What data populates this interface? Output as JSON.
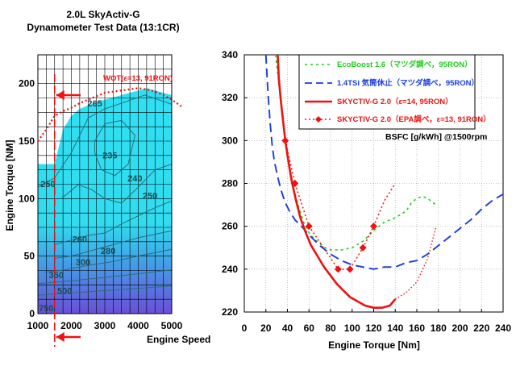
{
  "chart_data": [
    {
      "type": "heatmap",
      "title": "2.0L SkyActiv-G",
      "subtitle": "Dynamometer Test Data (13:1CR)",
      "xlabel": "Engine Speed",
      "ylabel": "Engine Torque [NM]",
      "xlim": [
        1000,
        5000
      ],
      "ylim": [
        0,
        225
      ],
      "xticks": [
        "1000",
        "2000",
        "3000",
        "4000",
        "5000"
      ],
      "yticks": [
        "0",
        "50",
        "100",
        "150",
        "200"
      ],
      "grid": true,
      "wot_label": "WOT(ε=13, 91RON)",
      "wot_curve": {
        "x": [
          1000,
          1250,
          1500,
          1750,
          2000,
          2250,
          2500,
          2750,
          3000,
          3250,
          3500,
          3750,
          4000,
          4250,
          4500,
          4750,
          5000,
          5300
        ],
        "y": [
          150,
          160,
          172,
          176,
          179,
          183,
          186,
          189,
          192,
          193,
          194,
          195,
          196,
          195,
          193,
          190,
          186,
          180
        ]
      },
      "fill_top": {
        "x": [
          1000,
          1500,
          1750,
          2000,
          2250,
          2500,
          2750,
          3000,
          3250,
          3500,
          3750,
          4000,
          4250,
          4500,
          4750,
          5000
        ],
        "y": [
          130,
          130,
          160,
          172,
          178,
          181,
          184,
          186,
          188,
          190,
          192,
          194,
          196,
          194,
          192,
          190
        ]
      },
      "contour_labels": [
        {
          "text": "250",
          "x": 1300,
          "y": 110
        },
        {
          "text": "265",
          "x": 2700,
          "y": 180
        },
        {
          "text": "235",
          "x": 3150,
          "y": 135
        },
        {
          "text": "240",
          "x": 3900,
          "y": 115
        },
        {
          "text": "250",
          "x": 4350,
          "y": 100
        },
        {
          "text": "260",
          "x": 2250,
          "y": 62
        },
        {
          "text": "280",
          "x": 3100,
          "y": 52
        },
        {
          "text": "300",
          "x": 2350,
          "y": 42
        },
        {
          "text": "350",
          "x": 1550,
          "y": 31
        },
        {
          "text": "500",
          "x": 1800,
          "y": 17
        },
        {
          "text": "750",
          "x": 1250,
          "y": 2
        }
      ],
      "test_speed": 1500
    },
    {
      "type": "line",
      "xlabel": "Engine Torque [Nm]",
      "annotation": "BSFC [g/kWh] @1500rpm",
      "xlim": [
        0,
        240
      ],
      "ylim": [
        220,
        340
      ],
      "xticks": [
        "0",
        "20",
        "40",
        "60",
        "80",
        "100",
        "120",
        "140",
        "160",
        "180",
        "200",
        "220",
        "240"
      ],
      "yticks": [
        "220",
        "240",
        "260",
        "280",
        "300",
        "320",
        "340"
      ],
      "grid": true,
      "legend_position": "top-right",
      "series": [
        {
          "name": "EcoBoost 1.6（マツダ調べ，95RON）",
          "color": "#22cc22",
          "dash": "3,4",
          "x": [
            29,
            32,
            35,
            38,
            42,
            46,
            50,
            55,
            60,
            65,
            70,
            75,
            80,
            90,
            100,
            110,
            120,
            130,
            140,
            150,
            155,
            160,
            165,
            170,
            175,
            178
          ],
          "y": [
            340,
            327,
            315,
            300,
            288,
            277,
            270,
            262,
            257,
            254,
            252,
            250,
            249,
            249,
            250,
            253,
            258,
            262,
            264,
            267,
            271,
            273,
            274,
            273,
            271,
            270
          ]
        },
        {
          "name": "1.4TSi 気筒休止（マツダ調べ，95RON）",
          "color": "#1a3cdd",
          "dash": "11,6",
          "x": [
            20,
            22,
            24,
            26,
            28,
            31,
            34,
            38,
            42,
            47,
            53,
            60,
            70,
            80,
            90,
            100,
            110,
            120,
            130,
            140,
            150,
            160,
            170,
            180,
            190,
            200,
            210,
            220,
            230,
            240
          ],
          "y": [
            340,
            322,
            308,
            297,
            290,
            283,
            277,
            271,
            267,
            263,
            260,
            256,
            251,
            247,
            244,
            242,
            241,
            240,
            241,
            241,
            243,
            244,
            247,
            251,
            255,
            259,
            263,
            268,
            272,
            275
          ]
        },
        {
          "name": "SKYCTIV-G 2.0（ε=14, 95RON）",
          "color": "#ee1111",
          "dash": "",
          "x": [
            31,
            32,
            34,
            36,
            38,
            41,
            44,
            48,
            52,
            57,
            62,
            68,
            74,
            80,
            86,
            92,
            98,
            105,
            112,
            120,
            128,
            135,
            140
          ],
          "y": [
            340,
            329,
            318,
            309,
            300,
            290,
            281,
            272,
            264,
            257,
            251,
            246,
            241,
            237,
            233,
            230,
            227,
            225,
            223,
            222,
            222,
            223,
            226
          ]
        },
        {
          "name": "SKYCTIV-G 2.0（EPA調べ，ε=13, 91RON）",
          "color": "#ee1111",
          "dash": "2,3",
          "marker": "diamond",
          "x": [
            38,
            47,
            60,
            87,
            98,
            110,
            120,
            130,
            140
          ],
          "y": [
            300,
            280,
            260,
            240,
            240,
            250,
            260,
            272,
            280
          ],
          "marker_x": [
            38,
            47,
            60,
            87,
            98,
            110,
            120
          ],
          "marker_y": [
            300,
            280,
            260,
            240,
            240,
            250,
            260
          ]
        }
      ],
      "extra_dotted": {
        "color": "#ee1111",
        "x": [
          140,
          150,
          160,
          170,
          178
        ],
        "y": [
          226,
          229,
          234,
          245,
          260
        ]
      }
    }
  ]
}
